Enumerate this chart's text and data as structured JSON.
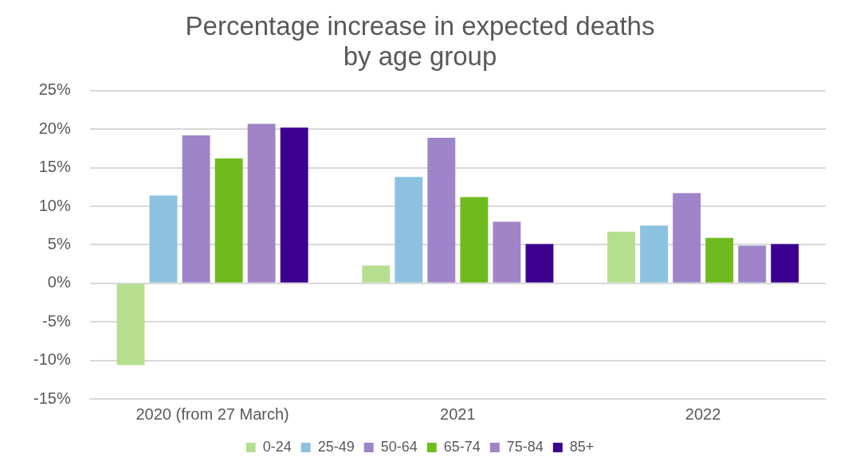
{
  "chart_data": {
    "type": "bar",
    "title": "Percentage increase in expected deaths\nby age group",
    "categories": [
      "2020 (from 27 March)",
      "2021",
      "2022"
    ],
    "series": [
      {
        "name": "0-24",
        "color": "#b5df8f",
        "values": [
          -10.6,
          2.3,
          6.7
        ]
      },
      {
        "name": "25-49",
        "color": "#8cc2e0",
        "values": [
          11.4,
          13.8,
          7.5
        ]
      },
      {
        "name": "50-64",
        "color": "#9e84c8",
        "values": [
          19.2,
          18.9,
          11.7
        ]
      },
      {
        "name": "65-74",
        "color": "#6fba1f",
        "values": [
          16.2,
          11.2,
          5.9
        ]
      },
      {
        "name": "75-84",
        "color": "#a184c7",
        "values": [
          20.7,
          8.0,
          4.9
        ]
      },
      {
        "name": "85+",
        "color": "#3c0090",
        "values": [
          20.2,
          5.1,
          5.1
        ]
      }
    ],
    "ylim": [
      -15,
      25
    ],
    "yticks": [
      {
        "value": -15,
        "label": "-15%"
      },
      {
        "value": -10,
        "label": "-10%"
      },
      {
        "value": -5,
        "label": "-5%"
      },
      {
        "value": 0,
        "label": "0%"
      },
      {
        "value": 5,
        "label": "5%"
      },
      {
        "value": 10,
        "label": "10%"
      },
      {
        "value": 15,
        "label": "15%"
      },
      {
        "value": 20,
        "label": "20%"
      },
      {
        "value": 25,
        "label": "25%"
      }
    ],
    "grid": "y",
    "legend": "bottom"
  }
}
